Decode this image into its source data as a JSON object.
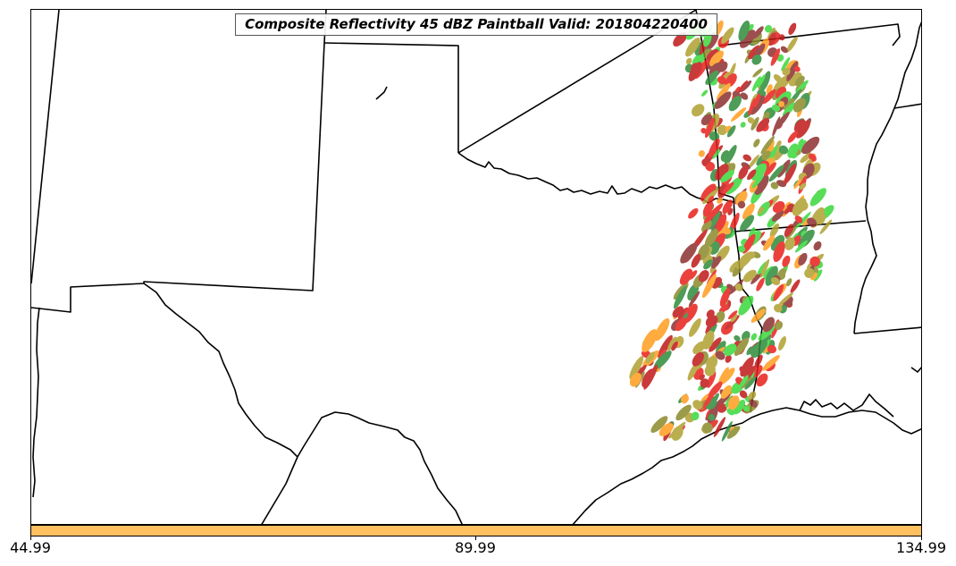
{
  "title": "Composite Reflectivity 45 dBZ Paintball Valid: 201804220400",
  "colorbar": {
    "color": "#ffc060",
    "ticks": [
      "44.99",
      "89.99",
      "134.99"
    ]
  },
  "colors": {
    "border": "#000000",
    "member_colors": [
      "#e8201c",
      "#ff9d1e",
      "#3ad83a",
      "#8c3030",
      "#8a8a2a",
      "#2e8b3a",
      "#b0a030",
      "#c01818"
    ]
  }
}
